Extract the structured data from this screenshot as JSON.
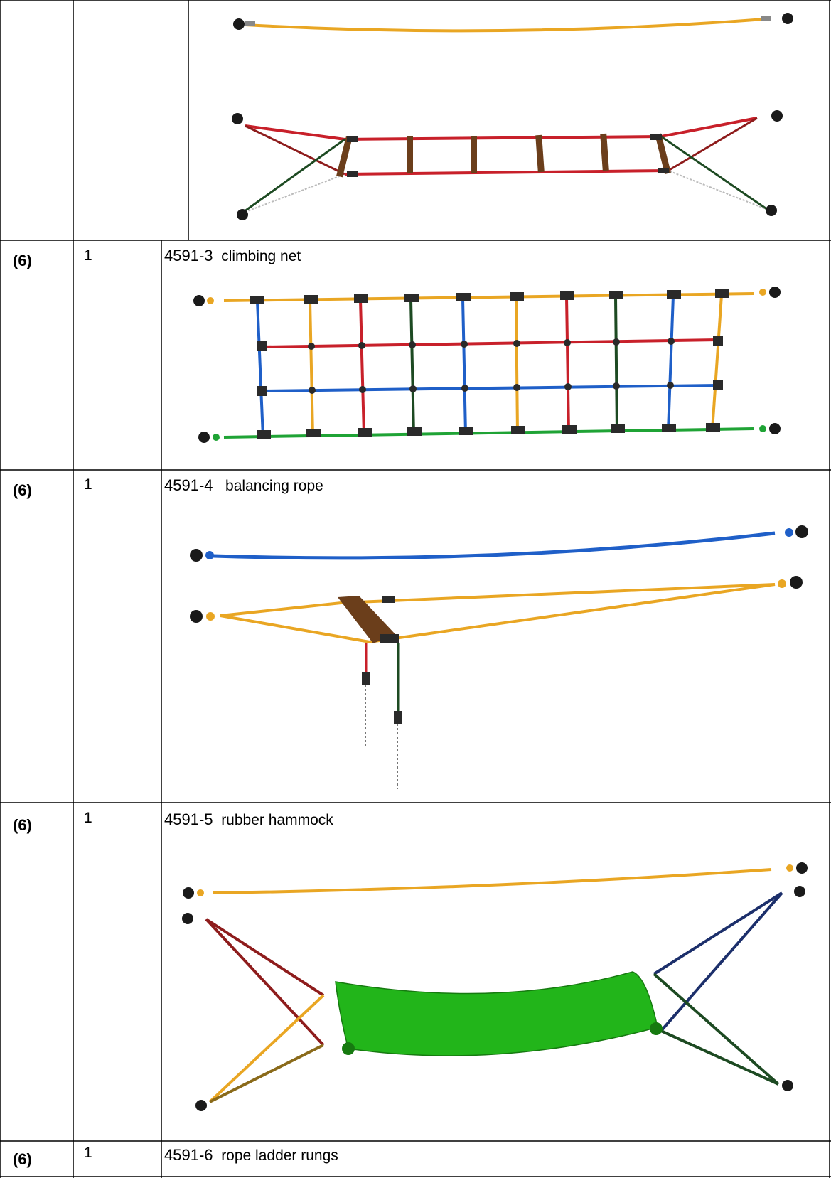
{
  "rows": [
    {
      "ref": "",
      "qty": "",
      "code": "",
      "name": ""
    },
    {
      "ref": "(6)",
      "qty": "1",
      "code": "4591-3",
      "name": "climbing net"
    },
    {
      "ref": "(6)",
      "qty": "1",
      "code": "4591-4",
      "name": "balancing rope"
    },
    {
      "ref": "(6)",
      "qty": "1",
      "code": "4591-5",
      "name": "rubber hammock"
    },
    {
      "ref": "(6)",
      "qty": "1",
      "code": "4591-6",
      "name": "rope ladder rungs"
    }
  ],
  "colors": {
    "rope_yellow": "#e9a623",
    "rope_red": "#c8202a",
    "rope_blue": "#1f5fc8",
    "rope_green": "#1b7a22",
    "rope_dark_green": "#1d4a22",
    "rope_dark_red": "#8e1c1c",
    "rope_navy": "#1c2f6b",
    "wood": "#6b3e1b",
    "fitting": "#2a2a2a",
    "hammock_green": "#22b51a"
  }
}
